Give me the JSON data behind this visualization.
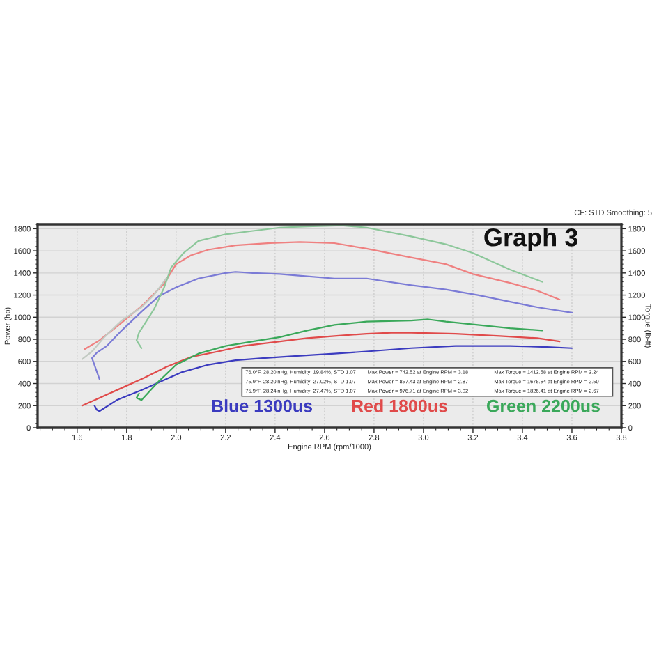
{
  "chart_data": {
    "type": "line",
    "title": "Graph 3",
    "subtitle": "CF: STD Smoothing: 5",
    "xlabel": "Engine RPM (rpm/1000)",
    "ylabel": "Power (hp)",
    "y2label": "Torque (lb-ft)",
    "xlim": [
      1.44,
      3.8
    ],
    "xticks": [
      1.6,
      1.8,
      {
        "value": 2,
        "label": "2.0"
      },
      2.2,
      2.4,
      2.6,
      2.8,
      {
        "value": 3,
        "label": "3.0"
      },
      3.2,
      3.4,
      3.6,
      3.8
    ],
    "ylim": [
      0,
      1840
    ],
    "yticks": [
      0,
      200,
      400,
      600,
      800,
      1000,
      1200,
      1400,
      1600,
      1800
    ],
    "y2lim": [
      0,
      1840
    ],
    "y2ticks": [
      0,
      200,
      400,
      600,
      800,
      1000,
      1200,
      1400,
      1600,
      1800
    ],
    "grid": true,
    "legend": "bottom right",
    "series": [
      {
        "name": "Blue 1300us",
        "color": "#3b3bbf",
        "x": [
          1.67,
          1.68,
          1.69,
          1.76,
          1.86,
          1.95,
          2.02,
          2.13,
          2.24,
          2.35,
          2.49,
          2.64,
          2.77,
          2.95,
          3.13,
          3.18,
          3.35,
          3.5,
          3.6
        ],
        "values": [
          200,
          160,
          150,
          250,
          340,
          430,
          500,
          570,
          610,
          630,
          650,
          670,
          690,
          720,
          740,
          740,
          740,
          730,
          720
        ]
      },
      {
        "name": "Red 1800us",
        "color": "#e04a4a",
        "x": [
          1.62,
          1.69,
          1.78,
          1.87,
          1.96,
          2.06,
          2.17,
          2.27,
          2.42,
          2.53,
          2.64,
          2.77,
          2.87,
          2.95,
          3.13,
          3.31,
          3.46,
          3.55
        ],
        "values": [
          200,
          270,
          360,
          450,
          550,
          640,
          690,
          740,
          780,
          810,
          830,
          850,
          860,
          860,
          850,
          830,
          810,
          780
        ]
      },
      {
        "name": "Green 2200us",
        "color": "#3aa85a",
        "x": [
          1.85,
          1.84,
          1.86,
          1.88,
          1.93,
          2.0,
          2.09,
          2.2,
          2.31,
          2.42,
          2.53,
          2.64,
          2.77,
          2.95,
          3.02,
          3.09,
          3.22,
          3.35,
          3.48
        ],
        "values": [
          310,
          270,
          250,
          300,
          420,
          570,
          670,
          740,
          780,
          820,
          880,
          930,
          960,
          970,
          980,
          960,
          930,
          900,
          880
        ]
      },
      {
        "color": "#7b7bd6",
        "axis": "y2",
        "x": [
          1.69,
          1.66,
          1.68,
          1.72,
          1.78,
          1.86,
          1.93,
          2.0,
          2.09,
          2.2,
          2.24,
          2.31,
          2.42,
          2.53,
          2.64,
          2.77,
          2.95,
          3.09,
          3.22,
          3.35,
          3.46,
          3.6
        ],
        "values": [
          440,
          630,
          680,
          740,
          880,
          1050,
          1190,
          1270,
          1350,
          1400,
          1410,
          1400,
          1390,
          1370,
          1350,
          1350,
          1290,
          1250,
          1200,
          1140,
          1090,
          1040
        ]
      },
      {
        "color": "#ef8080",
        "axis": "y2",
        "x": [
          1.63,
          1.69,
          1.78,
          1.87,
          1.95,
          2.0,
          2.06,
          2.13,
          2.24,
          2.38,
          2.5,
          2.64,
          2.77,
          2.95,
          3.09,
          3.2,
          3.35,
          3.46,
          3.55
        ],
        "values": [
          710,
          790,
          950,
          1120,
          1300,
          1480,
          1560,
          1610,
          1650,
          1670,
          1680,
          1670,
          1620,
          1540,
          1480,
          1390,
          1310,
          1240,
          1160
        ]
      },
      {
        "color": "#8cc79a",
        "axis": "y2",
        "x": [
          1.86,
          1.84,
          1.85,
          1.87,
          1.91,
          1.95,
          1.98,
          2.03,
          2.09,
          2.2,
          2.31,
          2.42,
          2.53,
          2.67,
          2.77,
          2.95,
          3.09,
          3.2,
          3.35,
          3.48
        ],
        "values": [
          720,
          790,
          860,
          930,
          1070,
          1260,
          1450,
          1580,
          1690,
          1750,
          1780,
          1810,
          1820,
          1830,
          1810,
          1730,
          1660,
          1580,
          1430,
          1320
        ]
      },
      {
        "color": "#c2cac2",
        "axis": "y2",
        "x": [
          1.62,
          1.66,
          1.71,
          1.78,
          1.86,
          1.91,
          1.96
        ],
        "values": [
          620,
          690,
          820,
          970,
          1090,
          1200,
          1350
        ]
      }
    ],
    "annotations": [
      "76.0°F, 28.20inHg, Humidity: 19.84%, STD 1.07",
      "Max Power = 742.52 at Engine RPM = 3.18",
      "Max Torque = 1412.58 at Engine RPM = 2.24",
      "75.9°F, 28.20inHg, Humidity: 27.02%, STD 1.07",
      "Max Power = 857.43 at Engine RPM = 2.87",
      "Max Torque = 1675.64 at Engine RPM = 2.50",
      "75.9°F, 28.24inHg, Humidity: 27.47%, STD 1.07",
      "Max Power = 976.71 at Engine RPM = 3.02",
      "Max Torque = 1826.41 at Engine RPM = 2.67"
    ]
  }
}
